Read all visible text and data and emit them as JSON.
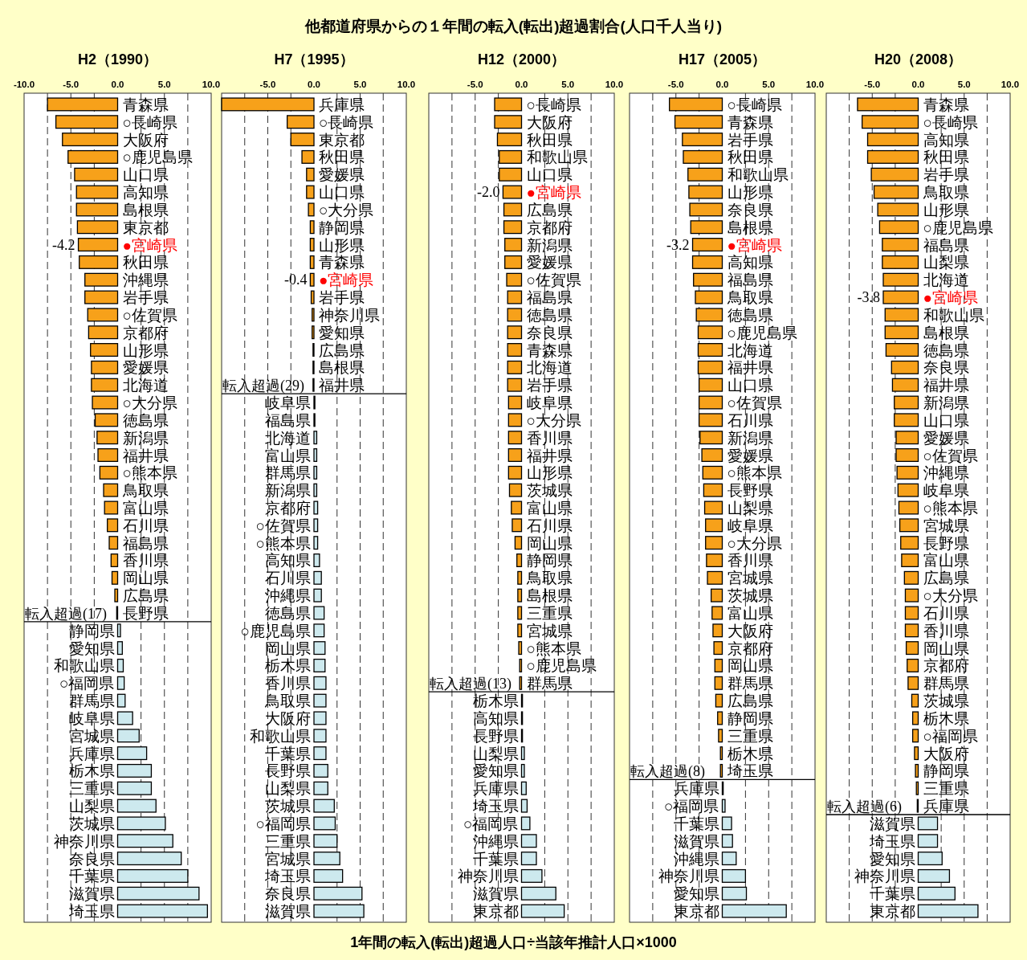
{
  "chart_data": [
    {
      "type": "other",
      "title": "他都道府県からの１年間の転入(転出)超過割合(人口千人当り)",
      "annotations": [
        "1年間の転入(転出)超過人口÷当該年推計人口×1000"
      ]
    },
    {
      "type": "bar",
      "orientation": "horizontal",
      "title": "H2（1990）",
      "xlim": [
        -10,
        10
      ],
      "xticks": [
        {
          "value": -10,
          "label": "-10.0"
        },
        {
          "value": -7.5,
          "label": null
        },
        {
          "value": -5,
          "label": "-5.0"
        },
        {
          "value": -2.5,
          "label": null
        },
        {
          "value": 0,
          "label": "0.0"
        },
        {
          "value": 2.5,
          "label": null
        },
        {
          "value": 5,
          "label": "5.0"
        },
        {
          "value": 7.5,
          "label": null
        },
        {
          "value": 10,
          "label": "10.0"
        }
      ],
      "grid": "x",
      "categories": [
        "青森県",
        "○長崎県",
        "大阪府",
        "○鹿児島県",
        "山口県",
        "高知県",
        "島根県",
        "東京都",
        "●宮崎県",
        "秋田県",
        "沖縄県",
        "岩手県",
        "○佐賀県",
        "京都府",
        "山形県",
        "愛媛県",
        "北海道",
        "○大分県",
        "徳島県",
        "新潟県",
        "福井県",
        "○熊本県",
        "鳥取県",
        "富山県",
        "石川県",
        "福島県",
        "香川県",
        "岡山県",
        "広島県",
        "長野県",
        "静岡県",
        "愛知県",
        "和歌山県",
        "○福岡県",
        "群馬県",
        "岐阜県",
        "宮城県",
        "兵庫県",
        "栃木県",
        "三重県",
        "山梨県",
        "茨城県",
        "神奈川県",
        "奈良県",
        "千葉県",
        "滋賀県",
        "埼玉県"
      ],
      "values": [
        -7.5,
        -6.6,
        -5.9,
        -5.3,
        -4.6,
        -4.4,
        -4.4,
        -4.3,
        -4.2,
        -4.1,
        -3.5,
        -3.5,
        -3.2,
        -3.1,
        -2.9,
        -2.8,
        -2.8,
        -2.7,
        -2.4,
        -2.2,
        -2.1,
        -1.9,
        -1.5,
        -1.4,
        -1.1,
        -0.9,
        -0.7,
        -0.6,
        -0.3,
        -0.1,
        0.3,
        0.5,
        0.6,
        0.7,
        0.8,
        1.6,
        2.3,
        3.1,
        3.6,
        3.6,
        4.1,
        5.1,
        5.9,
        6.8,
        7.5,
        8.7,
        9.6
      ],
      "colors": [
        "#f7a11a",
        "#f7a11a",
        "#f7a11a",
        "#f7a11a",
        "#f7a11a",
        "#f7a11a",
        "#f7a11a",
        "#f7a11a",
        "#f7a11a",
        "#f7a11a",
        "#f7a11a",
        "#f7a11a",
        "#f7a11a",
        "#f7a11a",
        "#f7a11a",
        "#f7a11a",
        "#f7a11a",
        "#f7a11a",
        "#f7a11a",
        "#f7a11a",
        "#f7a11a",
        "#f7a11a",
        "#f7a11a",
        "#f7a11a",
        "#f7a11a",
        "#f7a11a",
        "#f7a11a",
        "#f7a11a",
        "#f7a11a",
        "#f7a11a",
        "#cde9ee",
        "#cde9ee",
        "#cde9ee",
        "#cde9ee",
        "#cde9ee",
        "#cde9ee",
        "#cde9ee",
        "#cde9ee",
        "#cde9ee",
        "#cde9ee",
        "#cde9ee",
        "#cde9ee",
        "#cde9ee",
        "#cde9ee",
        "#cde9ee",
        "#cde9ee",
        "#cde9ee"
      ],
      "value_labels": [
        null,
        null,
        null,
        null,
        null,
        null,
        null,
        null,
        "-4.2",
        null,
        null,
        null,
        null,
        null,
        null,
        null,
        null,
        null,
        null,
        null,
        null,
        null,
        null,
        null,
        null,
        null,
        null,
        null,
        null,
        null,
        null,
        null,
        null,
        null,
        null,
        null,
        null,
        null,
        null,
        null,
        null,
        null,
        null,
        null,
        null,
        null,
        null
      ],
      "ref_lines": [
        {
          "axis": "y",
          "value": "静岡県",
          "label": "転入超過(17)"
        }
      ]
    },
    {
      "type": "bar",
      "orientation": "horizontal",
      "title": "H7（1995）",
      "xlim": [
        -10,
        10
      ],
      "xticks": [
        {
          "value": -10,
          "label": null
        },
        {
          "value": -7.5,
          "label": null
        },
        {
          "value": -5,
          "label": "-5.0"
        },
        {
          "value": -2.5,
          "label": null
        },
        {
          "value": 0,
          "label": "0.0"
        },
        {
          "value": 2.5,
          "label": null
        },
        {
          "value": 5,
          "label": "5.0"
        },
        {
          "value": 7.5,
          "label": null
        },
        {
          "value": 10,
          "label": "10.0"
        }
      ],
      "grid": "x",
      "categories": [
        "兵庫県",
        "○長崎県",
        "東京都",
        "秋田県",
        "愛媛県",
        "山口県",
        "○大分県",
        "静岡県",
        "山形県",
        "青森県",
        "●宮崎県",
        "岩手県",
        "神奈川県",
        "愛知県",
        "広島県",
        "島根県",
        "福井県",
        "岐阜県",
        "福島県",
        "北海道",
        "富山県",
        "群馬県",
        "新潟県",
        "京都府",
        "○佐賀県",
        "○熊本県",
        "高知県",
        "石川県",
        "沖縄県",
        "徳島県",
        "○鹿児島県",
        "岡山県",
        "栃木県",
        "香川県",
        "鳥取県",
        "大阪府",
        "和歌山県",
        "千葉県",
        "長野県",
        "山梨県",
        "茨城県",
        "○福岡県",
        "三重県",
        "宮城県",
        "埼玉県",
        "奈良県",
        "滋賀県"
      ],
      "values": [
        -10.0,
        -2.9,
        -2.5,
        -1.3,
        -0.8,
        -0.8,
        -0.6,
        -0.4,
        -0.4,
        -0.4,
        -0.4,
        -0.3,
        -0.2,
        -0.2,
        -0.1,
        -0.1,
        -0.1,
        0.1,
        0.1,
        0.3,
        0.3,
        0.3,
        0.3,
        0.4,
        0.4,
        0.4,
        0.6,
        0.8,
        0.8,
        1.1,
        1.1,
        1.2,
        1.2,
        1.3,
        1.3,
        1.3,
        1.3,
        1.3,
        1.5,
        1.5,
        2.2,
        2.3,
        2.5,
        2.8,
        3.1,
        5.2,
        5.4
      ],
      "colors": [
        "#f7a11a",
        "#f7a11a",
        "#f7a11a",
        "#f7a11a",
        "#f7a11a",
        "#f7a11a",
        "#f7a11a",
        "#f7a11a",
        "#f7a11a",
        "#f7a11a",
        "#f7a11a",
        "#f7a11a",
        "#f7a11a",
        "#f7a11a",
        "#f7a11a",
        "#f7a11a",
        "#f7a11a",
        "#cde9ee",
        "#cde9ee",
        "#cde9ee",
        "#cde9ee",
        "#cde9ee",
        "#cde9ee",
        "#cde9ee",
        "#cde9ee",
        "#cde9ee",
        "#cde9ee",
        "#cde9ee",
        "#cde9ee",
        "#cde9ee",
        "#cde9ee",
        "#cde9ee",
        "#cde9ee",
        "#cde9ee",
        "#cde9ee",
        "#cde9ee",
        "#cde9ee",
        "#cde9ee",
        "#cde9ee",
        "#cde9ee",
        "#cde9ee",
        "#cde9ee",
        "#cde9ee",
        "#cde9ee",
        "#cde9ee",
        "#cde9ee",
        "#cde9ee"
      ],
      "value_labels": [
        null,
        null,
        null,
        null,
        null,
        null,
        null,
        null,
        null,
        null,
        "-0.4",
        null,
        null,
        null,
        null,
        null,
        null,
        null,
        null,
        null,
        null,
        null,
        null,
        null,
        null,
        null,
        null,
        null,
        null,
        null,
        null,
        null,
        null,
        null,
        null,
        null,
        null,
        null,
        null,
        null,
        null,
        null,
        null,
        null,
        null,
        null,
        null
      ],
      "ref_lines": [
        {
          "axis": "y",
          "value": "岐阜県",
          "label": "転入超過(29)"
        }
      ]
    },
    {
      "type": "bar",
      "orientation": "horizontal",
      "title": "H12（2000）",
      "xlim": [
        -10,
        10
      ],
      "xticks": [
        {
          "value": -10,
          "label": null
        },
        {
          "value": -7.5,
          "label": null
        },
        {
          "value": -5,
          "label": "-5.0"
        },
        {
          "value": -2.5,
          "label": null
        },
        {
          "value": 0,
          "label": "0.0"
        },
        {
          "value": 2.5,
          "label": null
        },
        {
          "value": 5,
          "label": "5.0"
        },
        {
          "value": 7.5,
          "label": null
        },
        {
          "value": 10,
          "label": "10.0"
        }
      ],
      "grid": "x",
      "categories": [
        "○長崎県",
        "大阪府",
        "秋田県",
        "和歌山県",
        "山口県",
        "●宮崎県",
        "広島県",
        "京都府",
        "新潟県",
        "愛媛県",
        "○佐賀県",
        "福島県",
        "徳島県",
        "奈良県",
        "青森県",
        "北海道",
        "岩手県",
        "岐阜県",
        "○大分県",
        "香川県",
        "福井県",
        "山形県",
        "茨城県",
        "富山県",
        "石川県",
        "岡山県",
        "静岡県",
        "鳥取県",
        "島根県",
        "三重県",
        "宮城県",
        "○熊本県",
        "○鹿児島県",
        "群馬県",
        "栃木県",
        "高知県",
        "長野県",
        "山梨県",
        "愛知県",
        "兵庫県",
        "埼玉県",
        "○福岡県",
        "沖縄県",
        "千葉県",
        "神奈川県",
        "滋賀県",
        "東京都"
      ],
      "values": [
        -2.9,
        -2.9,
        -2.6,
        -2.4,
        -2.4,
        -2.0,
        -1.9,
        -1.9,
        -1.8,
        -1.8,
        -1.6,
        -1.5,
        -1.5,
        -1.5,
        -1.5,
        -1.5,
        -1.5,
        -1.4,
        -1.4,
        -1.4,
        -1.4,
        -1.4,
        -1.3,
        -1.1,
        -1.0,
        -0.7,
        -0.5,
        -0.4,
        -0.4,
        -0.4,
        -0.4,
        -0.3,
        -0.2,
        -0.2,
        0.1,
        0.1,
        0.1,
        0.3,
        0.3,
        0.5,
        0.6,
        0.9,
        1.6,
        1.6,
        2.2,
        3.7,
        4.6
      ],
      "colors": [
        "#f7a11a",
        "#f7a11a",
        "#f7a11a",
        "#f7a11a",
        "#f7a11a",
        "#f7a11a",
        "#f7a11a",
        "#f7a11a",
        "#f7a11a",
        "#f7a11a",
        "#f7a11a",
        "#f7a11a",
        "#f7a11a",
        "#f7a11a",
        "#f7a11a",
        "#f7a11a",
        "#f7a11a",
        "#f7a11a",
        "#f7a11a",
        "#f7a11a",
        "#f7a11a",
        "#f7a11a",
        "#f7a11a",
        "#f7a11a",
        "#f7a11a",
        "#f7a11a",
        "#f7a11a",
        "#f7a11a",
        "#f7a11a",
        "#f7a11a",
        "#f7a11a",
        "#f7a11a",
        "#f7a11a",
        "#f7a11a",
        "#cde9ee",
        "#cde9ee",
        "#cde9ee",
        "#cde9ee",
        "#cde9ee",
        "#cde9ee",
        "#cde9ee",
        "#cde9ee",
        "#cde9ee",
        "#cde9ee",
        "#cde9ee",
        "#cde9ee",
        "#cde9ee"
      ],
      "value_labels": [
        null,
        null,
        null,
        null,
        null,
        "-2.0",
        null,
        null,
        null,
        null,
        null,
        null,
        null,
        null,
        null,
        null,
        null,
        null,
        null,
        null,
        null,
        null,
        null,
        null,
        null,
        null,
        null,
        null,
        null,
        null,
        null,
        null,
        null,
        null,
        null,
        null,
        null,
        null,
        null,
        null,
        null,
        null,
        null,
        null,
        null,
        null,
        null
      ],
      "ref_lines": [
        {
          "axis": "y",
          "value": "栃木県",
          "label": "転入超過(13)"
        }
      ]
    },
    {
      "type": "bar",
      "orientation": "horizontal",
      "title": "H17（2005）",
      "xlim": [
        -10,
        10
      ],
      "xticks": [
        {
          "value": -10,
          "label": null
        },
        {
          "value": -7.5,
          "label": null
        },
        {
          "value": -5,
          "label": "-5.0"
        },
        {
          "value": -2.5,
          "label": null
        },
        {
          "value": 0,
          "label": "0.0"
        },
        {
          "value": 2.5,
          "label": null
        },
        {
          "value": 5,
          "label": "5.0"
        },
        {
          "value": 7.5,
          "label": null
        },
        {
          "value": 10,
          "label": "10.0"
        }
      ],
      "grid": "x",
      "categories": [
        "○長崎県",
        "青森県",
        "岩手県",
        "秋田県",
        "和歌山県",
        "山形県",
        "奈良県",
        "島根県",
        "●宮崎県",
        "高知県",
        "福島県",
        "鳥取県",
        "徳島県",
        "○鹿児島県",
        "北海道",
        "福井県",
        "山口県",
        "○佐賀県",
        "石川県",
        "新潟県",
        "愛媛県",
        "○熊本県",
        "長野県",
        "山梨県",
        "岐阜県",
        "○大分県",
        "香川県",
        "宮城県",
        "茨城県",
        "富山県",
        "大阪府",
        "京都府",
        "岡山県",
        "群馬県",
        "広島県",
        "静岡県",
        "三重県",
        "栃木県",
        "埼玉県",
        "兵庫県",
        "○福岡県",
        "千葉県",
        "滋賀県",
        "沖縄県",
        "神奈川県",
        "愛知県",
        "東京都"
      ],
      "values": [
        -5.7,
        -5.1,
        -4.3,
        -4.2,
        -3.7,
        -3.6,
        -3.5,
        -3.4,
        -3.2,
        -3.2,
        -3.1,
        -2.9,
        -2.8,
        -2.6,
        -2.6,
        -2.6,
        -2.5,
        -2.5,
        -2.5,
        -2.4,
        -2.2,
        -2.1,
        -2.0,
        -1.9,
        -1.8,
        -1.8,
        -1.7,
        -1.6,
        -1.2,
        -1.1,
        -1.0,
        -0.9,
        -0.8,
        -0.8,
        -0.7,
        -0.5,
        -0.4,
        -0.2,
        -0.2,
        0.1,
        0.3,
        1.0,
        1.1,
        1.5,
        2.5,
        2.6,
        6.9
      ],
      "colors": [
        "#f7a11a",
        "#f7a11a",
        "#f7a11a",
        "#f7a11a",
        "#f7a11a",
        "#f7a11a",
        "#f7a11a",
        "#f7a11a",
        "#f7a11a",
        "#f7a11a",
        "#f7a11a",
        "#f7a11a",
        "#f7a11a",
        "#f7a11a",
        "#f7a11a",
        "#f7a11a",
        "#f7a11a",
        "#f7a11a",
        "#f7a11a",
        "#f7a11a",
        "#f7a11a",
        "#f7a11a",
        "#f7a11a",
        "#f7a11a",
        "#f7a11a",
        "#f7a11a",
        "#f7a11a",
        "#f7a11a",
        "#f7a11a",
        "#f7a11a",
        "#f7a11a",
        "#f7a11a",
        "#f7a11a",
        "#f7a11a",
        "#f7a11a",
        "#f7a11a",
        "#f7a11a",
        "#f7a11a",
        "#f7a11a",
        "#cde9ee",
        "#cde9ee",
        "#cde9ee",
        "#cde9ee",
        "#cde9ee",
        "#cde9ee",
        "#cde9ee",
        "#cde9ee"
      ],
      "value_labels": [
        null,
        null,
        null,
        null,
        null,
        null,
        null,
        null,
        "-3.2",
        null,
        null,
        null,
        null,
        null,
        null,
        null,
        null,
        null,
        null,
        null,
        null,
        null,
        null,
        null,
        null,
        null,
        null,
        null,
        null,
        null,
        null,
        null,
        null,
        null,
        null,
        null,
        null,
        null,
        null,
        null,
        null,
        null,
        null,
        null,
        null,
        null,
        null
      ],
      "ref_lines": [
        {
          "axis": "y",
          "value": "兵庫県",
          "label": "転入超過(8)"
        }
      ]
    },
    {
      "type": "bar",
      "orientation": "horizontal",
      "title": "H20（2008）",
      "xlim": [
        -10,
        10
      ],
      "xticks": [
        {
          "value": -10,
          "label": null
        },
        {
          "value": -7.5,
          "label": null
        },
        {
          "value": -5,
          "label": "-5.0"
        },
        {
          "value": -2.5,
          "label": null
        },
        {
          "value": 0,
          "label": "0.0"
        },
        {
          "value": 2.5,
          "label": null
        },
        {
          "value": 5,
          "label": "5.0"
        },
        {
          "value": 7.5,
          "label": null
        },
        {
          "value": 10,
          "label": "10.0"
        }
      ],
      "grid": "x",
      "categories": [
        "青森県",
        "○長崎県",
        "高知県",
        "秋田県",
        "岩手県",
        "鳥取県",
        "山形県",
        "○鹿児島県",
        "福島県",
        "山梨県",
        "北海道",
        "●宮崎県",
        "和歌山県",
        "島根県",
        "徳島県",
        "奈良県",
        "福井県",
        "新潟県",
        "山口県",
        "愛媛県",
        "○佐賀県",
        "沖縄県",
        "岐阜県",
        "○熊本県",
        "宮城県",
        "長野県",
        "富山県",
        "広島県",
        "○大分県",
        "石川県",
        "香川県",
        "岡山県",
        "京都府",
        "群馬県",
        "茨城県",
        "栃木県",
        "○福岡県",
        "大阪府",
        "静岡県",
        "三重県",
        "兵庫県",
        "滋賀県",
        "埼玉県",
        "愛知県",
        "神奈川県",
        "千葉県",
        "東京都"
      ],
      "values": [
        -6.6,
        -6.1,
        -5.5,
        -5.5,
        -5.1,
        -4.8,
        -4.4,
        -4.2,
        -3.9,
        -3.9,
        -3.8,
        -3.8,
        -3.6,
        -3.6,
        -3.5,
        -2.9,
        -2.8,
        -2.6,
        -2.6,
        -2.4,
        -2.4,
        -2.3,
        -2.2,
        -2.1,
        -2.0,
        -1.9,
        -1.8,
        -1.5,
        -1.4,
        -1.4,
        -1.4,
        -1.3,
        -1.2,
        -1.1,
        -0.7,
        -0.6,
        -0.6,
        -0.4,
        -0.3,
        -0.2,
        -0.1,
        2.1,
        2.1,
        2.6,
        3.4,
        4.0,
        6.5
      ],
      "colors": [
        "#f7a11a",
        "#f7a11a",
        "#f7a11a",
        "#f7a11a",
        "#f7a11a",
        "#f7a11a",
        "#f7a11a",
        "#f7a11a",
        "#f7a11a",
        "#f7a11a",
        "#f7a11a",
        "#f7a11a",
        "#f7a11a",
        "#f7a11a",
        "#f7a11a",
        "#f7a11a",
        "#f7a11a",
        "#f7a11a",
        "#f7a11a",
        "#f7a11a",
        "#f7a11a",
        "#f7a11a",
        "#f7a11a",
        "#f7a11a",
        "#f7a11a",
        "#f7a11a",
        "#f7a11a",
        "#f7a11a",
        "#f7a11a",
        "#f7a11a",
        "#f7a11a",
        "#f7a11a",
        "#f7a11a",
        "#f7a11a",
        "#f7a11a",
        "#f7a11a",
        "#f7a11a",
        "#f7a11a",
        "#f7a11a",
        "#f7a11a",
        "#f7a11a",
        "#cde9ee",
        "#cde9ee",
        "#cde9ee",
        "#cde9ee",
        "#cde9ee",
        "#cde9ee"
      ],
      "value_labels": [
        null,
        null,
        null,
        null,
        null,
        null,
        null,
        null,
        null,
        null,
        null,
        "-3.8",
        null,
        null,
        null,
        null,
        null,
        null,
        null,
        null,
        null,
        null,
        null,
        null,
        null,
        null,
        null,
        null,
        null,
        null,
        null,
        null,
        null,
        null,
        null,
        null,
        null,
        null,
        null,
        null,
        null,
        null,
        null,
        null,
        null,
        null,
        null
      ],
      "ref_lines": [
        {
          "axis": "y",
          "value": "滋賀県",
          "label": "転入超過(6)"
        }
      ]
    }
  ]
}
